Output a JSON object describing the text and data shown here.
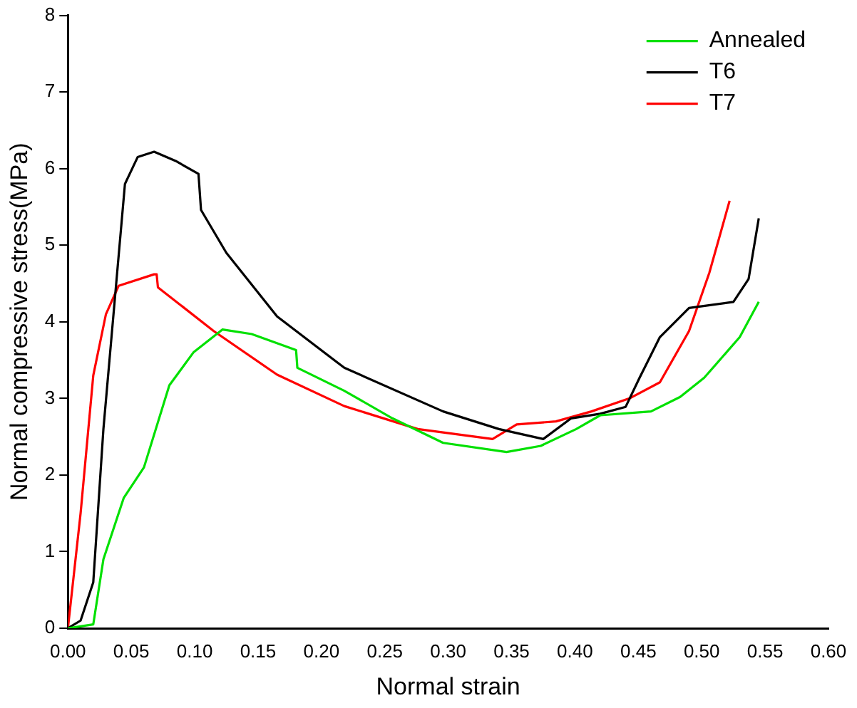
{
  "chart_data": {
    "type": "line",
    "xlabel": "Normal strain",
    "ylabel": "Normal compressive stress(MPa)",
    "xlim": [
      0,
      0.6
    ],
    "xticks": [
      {
        "value": 0,
        "label": "0.00"
      },
      {
        "value": 0.05,
        "label": "0.05"
      },
      {
        "value": 0.1,
        "label": "0.10"
      },
      {
        "value": 0.15,
        "label": "0.15"
      },
      {
        "value": 0.2,
        "label": "0.20"
      },
      {
        "value": 0.25,
        "label": "0.25"
      },
      {
        "value": 0.3,
        "label": "0.30"
      },
      {
        "value": 0.35,
        "label": "0.35"
      },
      {
        "value": 0.4,
        "label": "0.40"
      },
      {
        "value": 0.45,
        "label": "0.45"
      },
      {
        "value": 0.5,
        "label": "0.50"
      },
      {
        "value": 0.55,
        "label": "0.55"
      },
      {
        "value": 0.6,
        "label": "0.60"
      }
    ],
    "ylim": [
      0,
      8
    ],
    "yticks": [
      0,
      1,
      2,
      3,
      4,
      5,
      6,
      7,
      8
    ],
    "grid": false,
    "legend": "top right",
    "marker": "none",
    "line_style": "solid",
    "series": [
      {
        "name": "Annealed",
        "color": "#00e000",
        "x": [
          0,
          0.02,
          0.028,
          0.044,
          0.06,
          0.08,
          0.099,
          0.122,
          0.145,
          0.18,
          0.181,
          0.218,
          0.256,
          0.296,
          0.346,
          0.373,
          0.401,
          0.42,
          0.46,
          0.483,
          0.502,
          0.53,
          0.545
        ],
        "values": [
          0,
          0.05,
          0.9,
          1.7,
          2.1,
          3.17,
          3.6,
          3.9,
          3.84,
          3.63,
          3.4,
          3.1,
          2.74,
          2.42,
          2.3,
          2.38,
          2.6,
          2.78,
          2.83,
          3.02,
          3.27,
          3.8,
          4.26
        ]
      },
      {
        "name": "T6",
        "color": "#000000",
        "x": [
          0,
          0.01,
          0.02,
          0.028,
          0.045,
          0.055,
          0.068,
          0.085,
          0.103,
          0.105,
          0.125,
          0.165,
          0.218,
          0.296,
          0.34,
          0.375,
          0.397,
          0.42,
          0.44,
          0.451,
          0.467,
          0.49,
          0.525,
          0.537,
          0.545
        ],
        "values": [
          0,
          0.1,
          0.6,
          2.6,
          5.8,
          6.15,
          6.22,
          6.1,
          5.93,
          5.46,
          4.9,
          4.07,
          3.4,
          2.83,
          2.6,
          2.47,
          2.74,
          2.8,
          2.89,
          3.27,
          3.8,
          4.18,
          4.26,
          4.56,
          5.35
        ]
      },
      {
        "name": "T7",
        "color": "#ff0000",
        "x": [
          0,
          0.01,
          0.02,
          0.03,
          0.04,
          0.068,
          0.07,
          0.071,
          0.115,
          0.165,
          0.218,
          0.276,
          0.335,
          0.354,
          0.385,
          0.413,
          0.443,
          0.467,
          0.49,
          0.506,
          0.522
        ],
        "values": [
          0,
          1.5,
          3.3,
          4.1,
          4.47,
          4.62,
          4.62,
          4.45,
          3.88,
          3.31,
          2.9,
          2.6,
          2.47,
          2.66,
          2.7,
          2.83,
          3.0,
          3.21,
          3.88,
          4.64,
          5.58
        ]
      }
    ]
  }
}
